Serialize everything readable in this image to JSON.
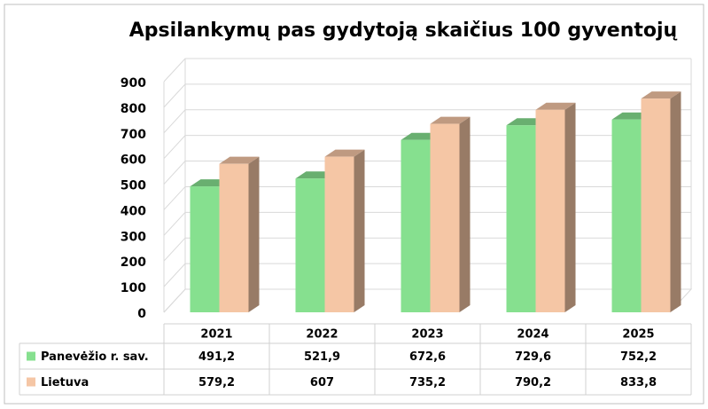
{
  "chart_data": {
    "type": "bar3d",
    "title": "Apsilankymų pas gydytoją skaičius 100 gyventojų",
    "categories": [
      "2021",
      "2022",
      "2023",
      "2024",
      "2025"
    ],
    "series": [
      {
        "name": "Panevėžio r. sav.",
        "color": "#86e08f",
        "values": [
          491.2,
          521.9,
          672.6,
          729.6,
          752.2
        ],
        "value_labels": [
          "491,2",
          "521,9",
          "672,6",
          "729,6",
          "752,2"
        ]
      },
      {
        "name": "Lietuva",
        "color": "#f5c6a5",
        "values": [
          579.2,
          607,
          735.2,
          790.2,
          833.8
        ],
        "value_labels": [
          "579,2",
          "607",
          "735,2",
          "790,2",
          "833,8"
        ]
      }
    ],
    "ylim": [
      0,
      900
    ],
    "yticks": [
      0,
      100,
      200,
      300,
      400,
      500,
      600,
      700,
      800,
      900
    ],
    "grid": true
  }
}
